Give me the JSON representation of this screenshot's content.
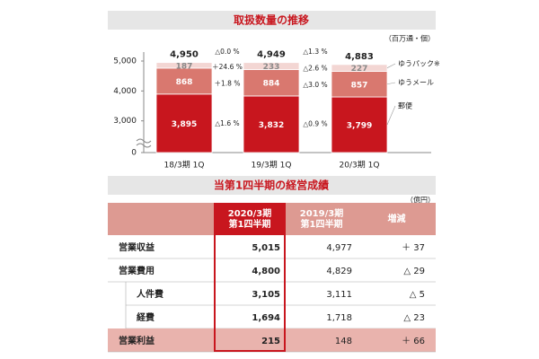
{
  "chart_data": {
    "type": "bar",
    "stacked": true,
    "title": "取扱数量の推移",
    "unit": "（百万通・個）",
    "categories": [
      "18/3期 1Q",
      "19/3期 1Q",
      "20/3期 1Q"
    ],
    "series": [
      {
        "name": "郵便",
        "color": "#c8161e",
        "values": [
          3895,
          3832,
          3799
        ],
        "changes": [
          "△1.6 %",
          "△0.9 %"
        ]
      },
      {
        "name": "ゆうメール",
        "color": "#d9786f",
        "values": [
          868,
          884,
          857
        ],
        "changes": [
          "＋1.8 %",
          "△3.0 %"
        ]
      },
      {
        "name": "ゆうパック※",
        "color": "#f3d6d3",
        "values": [
          187,
          233,
          227
        ],
        "changes": [
          "＋24.6 %",
          "△2.6 %"
        ]
      }
    ],
    "totals": [
      4950,
      4949,
      4883
    ],
    "total_labels": [
      "4,950",
      "4,949",
      "4,883"
    ],
    "total_changes": [
      "△0.0 %",
      "△1.3 %"
    ],
    "value_labels": [
      [
        "3,895",
        "3,832",
        "3,799"
      ],
      [
        "868",
        "884",
        "857"
      ],
      [
        "187",
        "233",
        "227"
      ]
    ],
    "ylim": [
      0,
      5300
    ],
    "axis_break": [
      0,
      2600
    ],
    "yticks": [
      0,
      {
        "value": 3000,
        "label": "3,000"
      },
      {
        "value": 4000,
        "label": "4,000"
      },
      {
        "value": 5000,
        "label": "5,000"
      }
    ]
  },
  "table": {
    "title": "当第1四半期の経営成績",
    "unit": "（億円）",
    "columns": [
      [
        "2020/3期",
        "第1四半期"
      ],
      [
        "2019/3期",
        "第1四半期"
      ],
      [
        "増減"
      ]
    ],
    "rows": [
      [
        "営業収益",
        "5,015",
        "4,977",
        "＋ 37"
      ],
      [
        "営業費用",
        "4,800",
        "4,829",
        "△ 29"
      ],
      [
        "人件費",
        "3,105",
        "3,111",
        "△ 5"
      ],
      [
        "経費",
        "1,694",
        "1,718",
        "△ 23"
      ],
      [
        "営業利益",
        "215",
        "148",
        "＋ 66"
      ]
    ]
  }
}
